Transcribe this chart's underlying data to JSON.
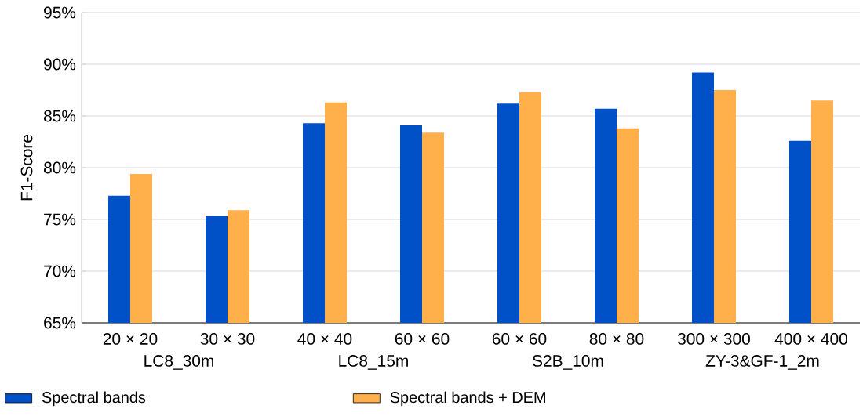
{
  "chart_data": {
    "type": "bar",
    "ylabel": "F1-Score",
    "categories": [
      "20 × 20",
      "30 × 30",
      "40 × 40",
      "60 × 60",
      "60 × 60",
      "80 × 80",
      "300 × 300",
      "400 × 400"
    ],
    "series": [
      {
        "name": "Spectral bands",
        "color": "#0050c8",
        "values": [
          77.3,
          75.3,
          84.3,
          84.1,
          86.2,
          85.7,
          89.2,
          82.6
        ]
      },
      {
        "name": "Spectral bands + DEM",
        "color": "#ffb04a",
        "values": [
          79.4,
          75.9,
          86.3,
          83.4,
          87.3,
          83.8,
          87.5,
          86.5
        ]
      }
    ],
    "annotations": [
      "LC8_30m",
      "LC8_15m",
      "S2B_10m",
      "ZY-3&GF-1_2m"
    ],
    "ylim": [
      65,
      95
    ],
    "yticks": [
      {
        "value": 65,
        "label": "65%"
      },
      {
        "value": 70,
        "label": "70%"
      },
      {
        "value": 75,
        "label": "75%"
      },
      {
        "value": 80,
        "label": "80%"
      },
      {
        "value": 85,
        "label": "85%"
      },
      {
        "value": 90,
        "label": "90%"
      },
      {
        "value": 95,
        "label": "95%"
      }
    ],
    "grid": "y",
    "legend": "bottom"
  }
}
